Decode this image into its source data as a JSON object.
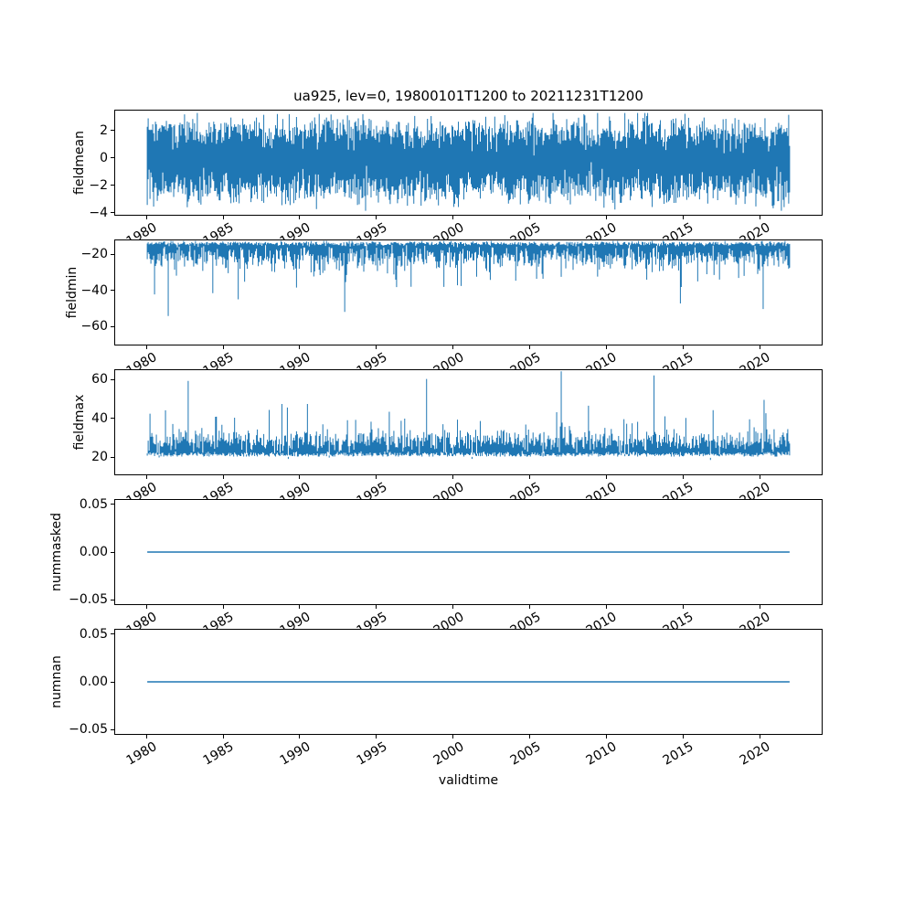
{
  "chart_data": {
    "type": "line",
    "title": "ua925, lev=0, 19800101T1200 to 20211231T1200",
    "xlabel": "validtime",
    "background": "#ffffff",
    "line_color": "#1f77b4",
    "grid": false,
    "legend": null,
    "x_is_time": true,
    "time_span": [
      "19800101T1200",
      "20211231T1200"
    ],
    "xlim": [
      1977.9,
      2024.1
    ],
    "data_x_range": [
      1980.0,
      2022.0
    ],
    "xticks": [
      {
        "v": 1980,
        "label": "1980"
      },
      {
        "v": 1985,
        "label": "1985"
      },
      {
        "v": 1990,
        "label": "1990"
      },
      {
        "v": 1995,
        "label": "1995"
      },
      {
        "v": 2000,
        "label": "2000"
      },
      {
        "v": 2005,
        "label": "2005"
      },
      {
        "v": 2010,
        "label": "2010"
      },
      {
        "v": 2015,
        "label": "2015"
      },
      {
        "v": 2020,
        "label": "2020"
      }
    ],
    "subplots": [
      {
        "ylabel": "fieldmean",
        "ylim": [
          -4.2,
          3.53
        ],
        "yticks": [
          {
            "v": 2,
            "label": "2"
          },
          {
            "v": 0,
            "label": "0"
          },
          {
            "v": -2,
            "label": "−2"
          },
          {
            "v": -4,
            "label": "−4"
          }
        ],
        "series": {
          "kind": "noisy-band",
          "description": "noisy series centered on 0, dense band ±2.2, extremes −3.8 to +3.3",
          "hi": {
            "mean": 2.0,
            "sd": 0.65
          },
          "lo": {
            "mean": -2.25,
            "sd": 0.65
          },
          "clip": [
            -3.9,
            3.35
          ],
          "spikes": null
        }
      },
      {
        "ylabel": "fieldmin",
        "ylim": [
          -70.6,
          -11.9
        ],
        "yticks": [
          {
            "v": -20,
            "label": "−20"
          },
          {
            "v": -40,
            "label": "−40"
          },
          {
            "v": -60,
            "label": "−60"
          }
        ],
        "series": {
          "kind": "noisy-band",
          "description": "dense band −13 to −28 with frequent downward spikes to −40/−50, rare to −67",
          "hi": {
            "mean": -13.7,
            "sd": 0.7
          },
          "lo": {
            "mean": -21.5,
            "sd": 3.3
          },
          "clip": [
            -67,
            -12.2
          ],
          "spikes": {
            "side": "lo",
            "prob": 0.07,
            "add": [
              4,
              16
            ],
            "deep_prob": 0.01,
            "deep_add": [
              16,
              38
            ]
          }
        }
      },
      {
        "ylabel": "fieldmax",
        "ylim": [
          10.6,
          65.2
        ],
        "yticks": [
          {
            "v": 60,
            "label": "60"
          },
          {
            "v": 40,
            "label": "40"
          },
          {
            "v": 20,
            "label": "20"
          }
        ],
        "series": {
          "kind": "noisy-band",
          "description": "dense band 20 to 31 with frequent upward spikes to 40/55, rare to 65",
          "hi": {
            "mean": 28.0,
            "sd": 3.0
          },
          "lo": {
            "mean": 21.0,
            "sd": 0.7
          },
          "clip": [
            19.9,
            64.8
          ],
          "spikes": {
            "side": "hi",
            "prob": 0.07,
            "add": [
              4,
              16
            ],
            "deep_prob": 0.012,
            "deep_add": [
              14,
              34
            ]
          }
        }
      },
      {
        "ylabel": "nummasked",
        "ylim": [
          -0.0553,
          0.0553
        ],
        "yticks": [
          {
            "v": 0.05,
            "label": "0.05"
          },
          {
            "v": 0,
            "label": "0.00"
          },
          {
            "v": -0.05,
            "label": "−0.05"
          }
        ],
        "series": {
          "kind": "constant",
          "value": 0
        }
      },
      {
        "ylabel": "numnan",
        "ylim": [
          -0.0553,
          0.0553
        ],
        "yticks": [
          {
            "v": 0.05,
            "label": "0.05"
          },
          {
            "v": 0,
            "label": "0.00"
          },
          {
            "v": -0.05,
            "label": "−0.05"
          }
        ],
        "series": {
          "kind": "constant",
          "value": 0
        }
      }
    ]
  }
}
